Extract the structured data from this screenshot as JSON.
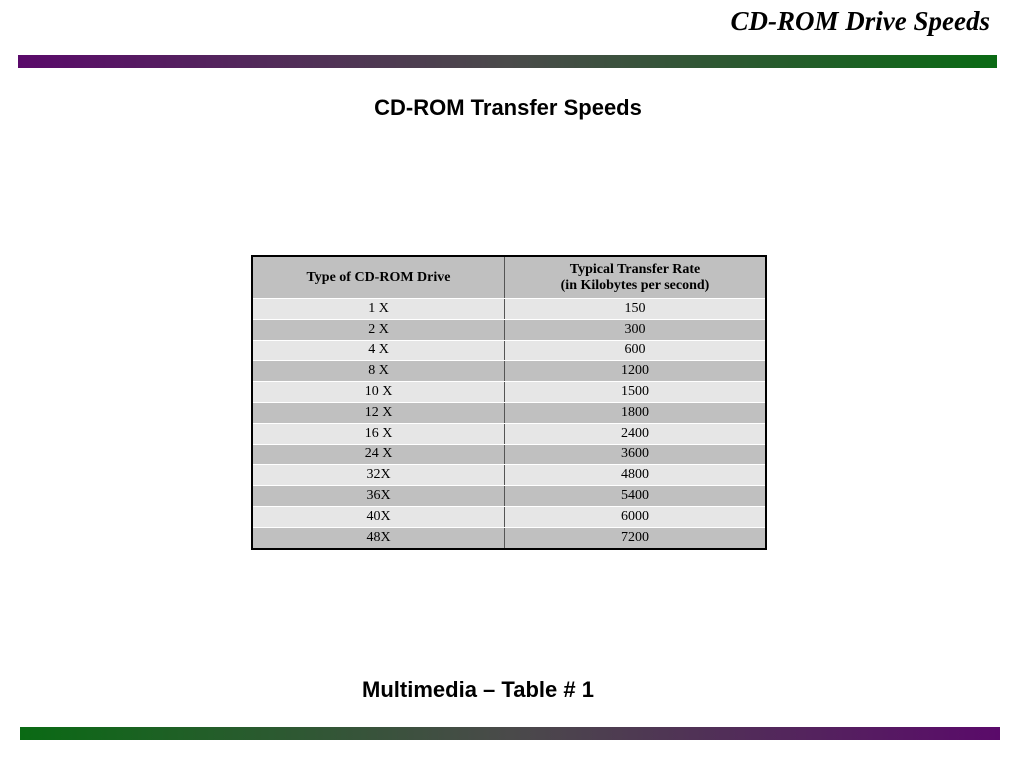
{
  "header": {
    "title": "CD-ROM Drive Speeds"
  },
  "subtitle": "CD-ROM Transfer Speeds",
  "table": {
    "columns": [
      "Type of CD-ROM Drive",
      [
        "Typical Transfer Rate",
        "(in Kilobytes per second)"
      ]
    ],
    "rows": [
      [
        "1 X",
        150
      ],
      [
        "2 X",
        300
      ],
      [
        "4 X",
        600
      ],
      [
        "8 X",
        1200
      ],
      [
        "10 X",
        1500
      ],
      [
        "12 X",
        1800
      ],
      [
        "16 X",
        2400
      ],
      [
        "24 X",
        3600
      ],
      [
        "32X",
        4800
      ],
      [
        "36X",
        5400
      ],
      [
        "40X",
        6000
      ],
      [
        "48X",
        7200
      ]
    ]
  },
  "footer": "Multimedia – Table # 1"
}
